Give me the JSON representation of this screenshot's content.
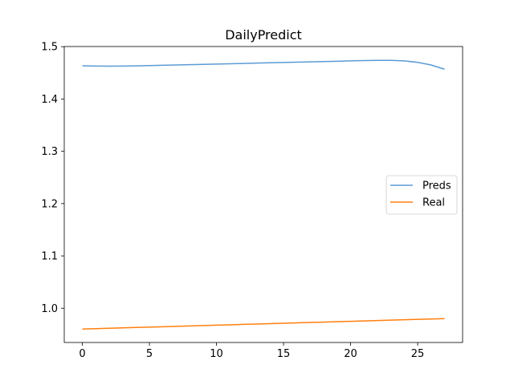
{
  "chart_data": {
    "type": "line",
    "title": "DailyPredict",
    "xlabel": "",
    "ylabel": "",
    "xlim": [
      -1.35,
      28.35
    ],
    "ylim": [
      0.9345,
      1.5003
    ],
    "xticks": [
      0,
      5,
      10,
      15,
      20,
      25
    ],
    "yticks": [
      1.0,
      1.1,
      1.2,
      1.3,
      1.4,
      1.5
    ],
    "grid": false,
    "legend_position": "center-right",
    "series": [
      {
        "name": "Preds",
        "color": "#5b9bd5",
        "x": [
          0,
          1,
          2,
          3,
          4,
          5,
          6,
          7,
          8,
          9,
          10,
          11,
          12,
          13,
          14,
          15,
          16,
          17,
          18,
          19,
          20,
          21,
          22,
          23,
          24,
          25,
          26,
          27
        ],
        "values": [
          1.4635,
          1.463,
          1.4628,
          1.4629,
          1.4633,
          1.4638,
          1.4644,
          1.465,
          1.4656,
          1.4662,
          1.4668,
          1.4674,
          1.468,
          1.4686,
          1.4692,
          1.4698,
          1.4704,
          1.471,
          1.4716,
          1.4722,
          1.4728,
          1.4734,
          1.4738,
          1.4738,
          1.4728,
          1.47,
          1.465,
          1.457
        ]
      },
      {
        "name": "Real",
        "color": "#ff7f0e",
        "x": [
          0,
          1,
          2,
          3,
          4,
          5,
          6,
          7,
          8,
          9,
          10,
          11,
          12,
          13,
          14,
          15,
          16,
          17,
          18,
          19,
          20,
          21,
          22,
          23,
          24,
          25,
          26,
          27
        ],
        "values": [
          0.9602,
          0.9609,
          0.9617,
          0.9624,
          0.9632,
          0.9639,
          0.9646,
          0.9654,
          0.9661,
          0.9669,
          0.9676,
          0.9683,
          0.9691,
          0.9698,
          0.9706,
          0.9713,
          0.972,
          0.9728,
          0.9735,
          0.9743,
          0.975,
          0.9757,
          0.9765,
          0.9772,
          0.978,
          0.9787,
          0.9794,
          0.9802
        ]
      }
    ]
  }
}
